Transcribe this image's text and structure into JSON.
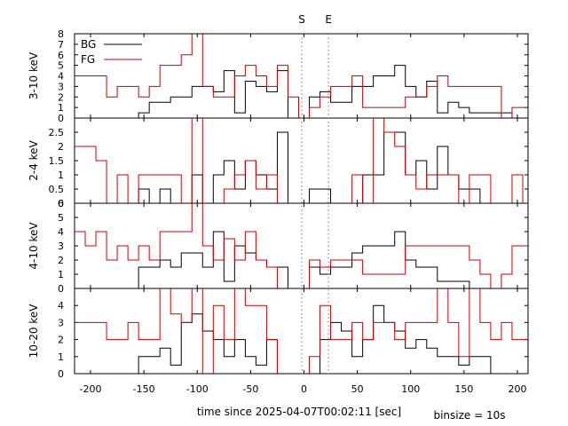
{
  "chart_data": {
    "type": "line",
    "line_style": "steps",
    "xlabel": "time since 2025-04-07T00:02:11 [sec]",
    "annotation": "binsize = 10s",
    "xlim": [
      -215,
      210
    ],
    "xticks": [
      -200,
      -150,
      -100,
      -50,
      0,
      50,
      100,
      150,
      200
    ],
    "markers": [
      {
        "label": "S",
        "x": -2
      },
      {
        "label": "E",
        "x": 23
      }
    ],
    "legend": {
      "placement": "top-left",
      "entries": [
        {
          "name": "BG",
          "color": "#000000"
        },
        {
          "name": "FG",
          "color": "#cc0000"
        }
      ]
    },
    "x": [
      -215,
      -205,
      -195,
      -185,
      -175,
      -165,
      -155,
      -145,
      -135,
      -125,
      -115,
      -105,
      -95,
      -85,
      -75,
      -65,
      -55,
      -45,
      -35,
      -25,
      -15,
      -5,
      5,
      15,
      25,
      35,
      45,
      55,
      65,
      75,
      85,
      95,
      105,
      115,
      125,
      135,
      145,
      155,
      165,
      175,
      185,
      195,
      205
    ],
    "panels": [
      {
        "ylabel": "3-10 keV",
        "ylim": [
          0,
          8
        ],
        "yticks": [
          0,
          1,
          2,
          3,
          4,
          5,
          6,
          7,
          8
        ],
        "series": [
          {
            "name": "BG",
            "color": "#000000",
            "values": [
              0,
              0,
              0,
              0,
              0,
              0,
              0.5,
              1.5,
              1.5,
              2,
              2,
              3,
              3,
              2.5,
              4.5,
              0.5,
              3.5,
              3,
              2.5,
              4.5,
              0,
              0,
              2,
              2.5,
              1.5,
              1.5,
              3,
              3,
              4,
              4,
              5,
              3,
              2,
              3.5,
              0.5,
              1.5,
              1,
              0.5,
              0.5,
              0.5,
              0.5,
              0,
              0
            ]
          },
          {
            "name": "FG",
            "color": "#cc0000",
            "values": [
              4,
              4,
              4,
              2,
              3,
              3,
              2,
              3,
              5,
              5,
              6,
              8,
              3,
              2,
              2,
              4,
              5,
              4,
              3,
              5,
              2,
              0,
              1,
              2,
              3,
              3,
              4,
              1,
              1,
              1,
              1,
              2,
              2,
              3,
              4,
              3,
              3,
              3,
              3,
              3,
              0,
              1,
              1
            ]
          }
        ]
      },
      {
        "ylabel": "2-4 keV",
        "ylim": [
          0,
          3
        ],
        "yticks": [
          0,
          0.5,
          1,
          1.5,
          2,
          2.5
        ],
        "series": [
          {
            "name": "BG",
            "color": "#000000",
            "values": [
              0,
              0,
              0,
              0,
              0,
              0,
              0.5,
              0,
              0.5,
              0,
              0,
              1,
              0,
              1,
              1.5,
              0.5,
              1.5,
              1,
              0.5,
              2.5,
              0,
              0,
              0.5,
              0.5,
              0,
              0,
              0,
              1,
              1,
              2.5,
              2.5,
              1,
              1.5,
              0.5,
              2,
              1,
              0.5,
              0.5,
              0,
              0,
              0,
              0,
              0
            ]
          },
          {
            "name": "FG",
            "color": "#cc0000",
            "values": [
              2,
              2,
              1.5,
              0,
              1,
              0,
              1,
              1,
              1,
              1,
              0,
              3,
              0,
              0,
              0.5,
              1,
              1.5,
              0.5,
              1,
              0,
              0,
              0,
              0,
              0,
              0,
              0,
              1,
              0,
              3,
              2.5,
              2,
              1,
              0.5,
              1,
              1,
              1,
              0,
              1,
              1,
              0,
              0,
              1,
              0
            ]
          }
        ]
      },
      {
        "ylabel": "4-10 keV",
        "ylim": [
          0,
          6
        ],
        "yticks": [
          0,
          1,
          2,
          3,
          4,
          5,
          6
        ],
        "series": [
          {
            "name": "BG",
            "color": "#000000",
            "values": [
              0,
              0,
              0,
              0,
              0,
              0,
              1.5,
              1.5,
              2,
              1.5,
              2.5,
              2.5,
              1.5,
              4,
              0.5,
              3,
              2.5,
              2,
              1.5,
              1.5,
              0,
              0,
              1.5,
              1,
              1.5,
              1.5,
              2.5,
              3,
              3,
              3,
              4,
              2,
              1.5,
              1.5,
              0.5,
              0.5,
              0.5,
              0,
              0,
              0,
              0,
              0,
              0
            ]
          },
          {
            "name": "FG",
            "color": "#cc0000",
            "values": [
              4,
              3,
              4,
              2,
              3,
              2,
              3,
              2,
              4,
              4,
              4,
              6,
              3,
              2,
              3.5,
              2,
              4,
              2,
              1.5,
              0,
              0,
              0,
              2,
              1.5,
              2,
              2,
              2,
              1,
              1,
              1,
              1,
              3,
              3,
              3,
              3,
              3,
              3,
              2,
              1,
              0,
              1,
              3,
              3
            ]
          }
        ]
      },
      {
        "ylabel": "10-20 keV",
        "ylim": [
          0,
          5
        ],
        "yticks": [
          0,
          1,
          2,
          3,
          4
        ],
        "series": [
          {
            "name": "BG",
            "color": "#000000",
            "values": [
              0,
              0,
              0,
              0,
              0,
              0,
              1,
              1,
              1.5,
              0.5,
              3,
              3.5,
              2.5,
              2,
              1,
              2,
              1,
              0.5,
              2,
              0,
              0,
              0,
              0,
              2,
              3,
              2.5,
              1,
              2,
              4,
              3,
              2.5,
              1.5,
              2,
              1.5,
              1,
              1,
              0.5,
              1,
              1,
              0,
              0,
              0,
              0
            ]
          },
          {
            "name": "FG",
            "color": "#cc0000",
            "values": [
              3,
              3,
              3,
              2,
              2,
              3,
              2,
              2,
              5,
              3.5,
              3,
              5,
              0,
              4,
              2,
              5,
              4,
              4,
              2,
              0,
              0,
              0,
              1,
              4,
              2,
              2,
              3,
              2,
              3,
              3,
              2,
              3,
              3,
              3,
              5,
              3,
              1,
              5,
              3,
              2,
              3,
              2,
              2
            ]
          }
        ]
      }
    ]
  }
}
